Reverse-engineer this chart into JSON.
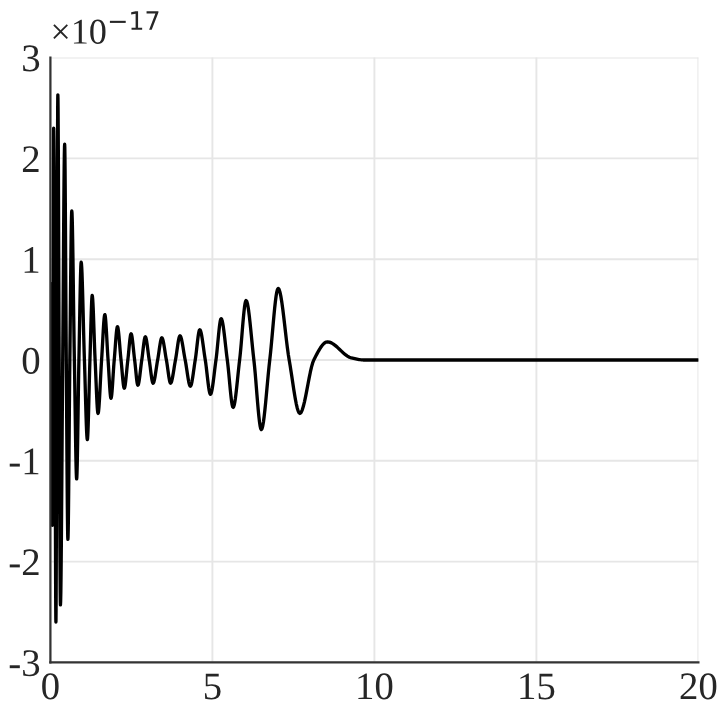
{
  "chart_data": {
    "type": "line",
    "annotations": [
      "×10$^{−17}$"
    ],
    "x": [
      0,
      0.03,
      0.06,
      0.08,
      0.1,
      0.14,
      0.17,
      0.2,
      0.23,
      0.27,
      0.31,
      0.38,
      0.44,
      0.49,
      0.54,
      0.6,
      0.66,
      0.74,
      0.81,
      0.88,
      0.95,
      1.05,
      1.14,
      1.22,
      1.29,
      1.38,
      1.47,
      1.58,
      1.68,
      1.78,
      1.87,
      1.97,
      2.07,
      2.18,
      2.28,
      2.39,
      2.49,
      2.6,
      2.7,
      2.82,
      2.93,
      3.05,
      3.17,
      3.31,
      3.44,
      3.58,
      3.71,
      3.86,
      4.0,
      4.16,
      4.32,
      4.47,
      4.61,
      4.78,
      4.94,
      5.11,
      5.27,
      5.46,
      5.64,
      5.84,
      6.04,
      6.28,
      6.51,
      6.77,
      7.03,
      7.37,
      7.7,
      8.13,
      8.55,
      9.29,
      9.7,
      20
    ],
    "series": [
      {
        "color": "#000000",
        "values": [
          0.76,
          0,
          -1.64,
          0,
          2.3,
          0,
          -2.6,
          0,
          2.63,
          0,
          -2.43,
          0,
          2.14,
          0,
          -1.78,
          0,
          1.48,
          0,
          -1.18,
          0,
          0.97,
          0,
          -0.79,
          0,
          0.64,
          0,
          -0.53,
          0,
          0.45,
          0,
          -0.38,
          0,
          0.33,
          0,
          -0.28,
          0,
          0.26,
          0,
          -0.25,
          0,
          0.23,
          0,
          -0.23,
          0,
          0.22,
          0,
          -0.23,
          0,
          0.24,
          0,
          -0.26,
          0,
          0.3,
          0,
          -0.34,
          0,
          0.41,
          0,
          -0.47,
          0,
          0.59,
          0,
          -0.69,
          0,
          0.71,
          0,
          -0.53,
          0,
          0.18,
          0.02,
          0,
          0
        ]
      }
    ],
    "xlim": [
      0,
      20
    ],
    "xticks": [
      0,
      5,
      10,
      15,
      20
    ],
    "ylim": [
      -3,
      3
    ],
    "yticks": [
      -3,
      -2,
      -1,
      0,
      1,
      2,
      3
    ],
    "grid": true,
    "legend": false,
    "marker": "none",
    "line_style": "solid"
  }
}
